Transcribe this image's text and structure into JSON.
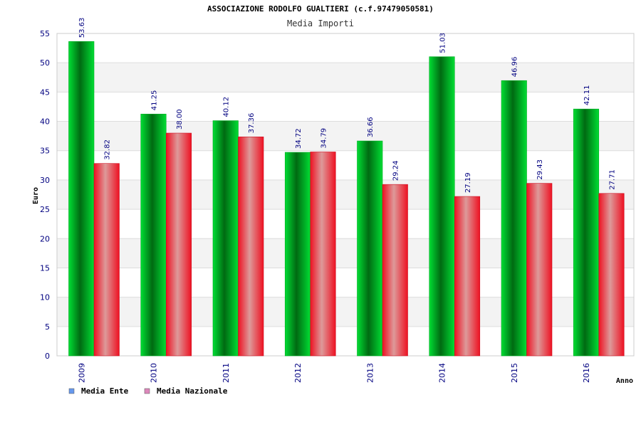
{
  "chart_data": {
    "type": "bar",
    "title": "ASSOCIAZIONE RODOLFO GUALTIERI (c.f.97479050581)",
    "subtitle": "Media Importi",
    "xlabel": "Anno",
    "ylabel": "Euro",
    "ylim": [
      0,
      55
    ],
    "yticks": [
      "0",
      "5",
      "10",
      "15",
      "20",
      "25",
      "30",
      "35",
      "40",
      "45",
      "50",
      "55"
    ],
    "grid": true,
    "legend_position": "bottom-left",
    "categories": [
      "2009",
      "2010",
      "2011",
      "2012",
      "2013",
      "2014",
      "2015",
      "2016"
    ],
    "series": [
      {
        "name": "Media Ente",
        "values": [
          53.63,
          41.25,
          40.12,
          34.72,
          36.66,
          51.03,
          46.96,
          42.11
        ],
        "labels": [
          "53.63",
          "41.25",
          "40.12",
          "34.72",
          "36.66",
          "51.03",
          "46.96",
          "42.11"
        ],
        "bar_color": "#00cc33",
        "legend_color": "#6699ee"
      },
      {
        "name": "Media Nazionale",
        "values": [
          32.82,
          38.0,
          37.36,
          34.79,
          29.24,
          27.19,
          29.43,
          27.71
        ],
        "labels": [
          "32.82",
          "38.00",
          "37.36",
          "34.79",
          "29.24",
          "27.19",
          "29.43",
          "27.71"
        ],
        "bar_color": "#ee1122",
        "legend_color": "#dd88bb"
      }
    ]
  }
}
